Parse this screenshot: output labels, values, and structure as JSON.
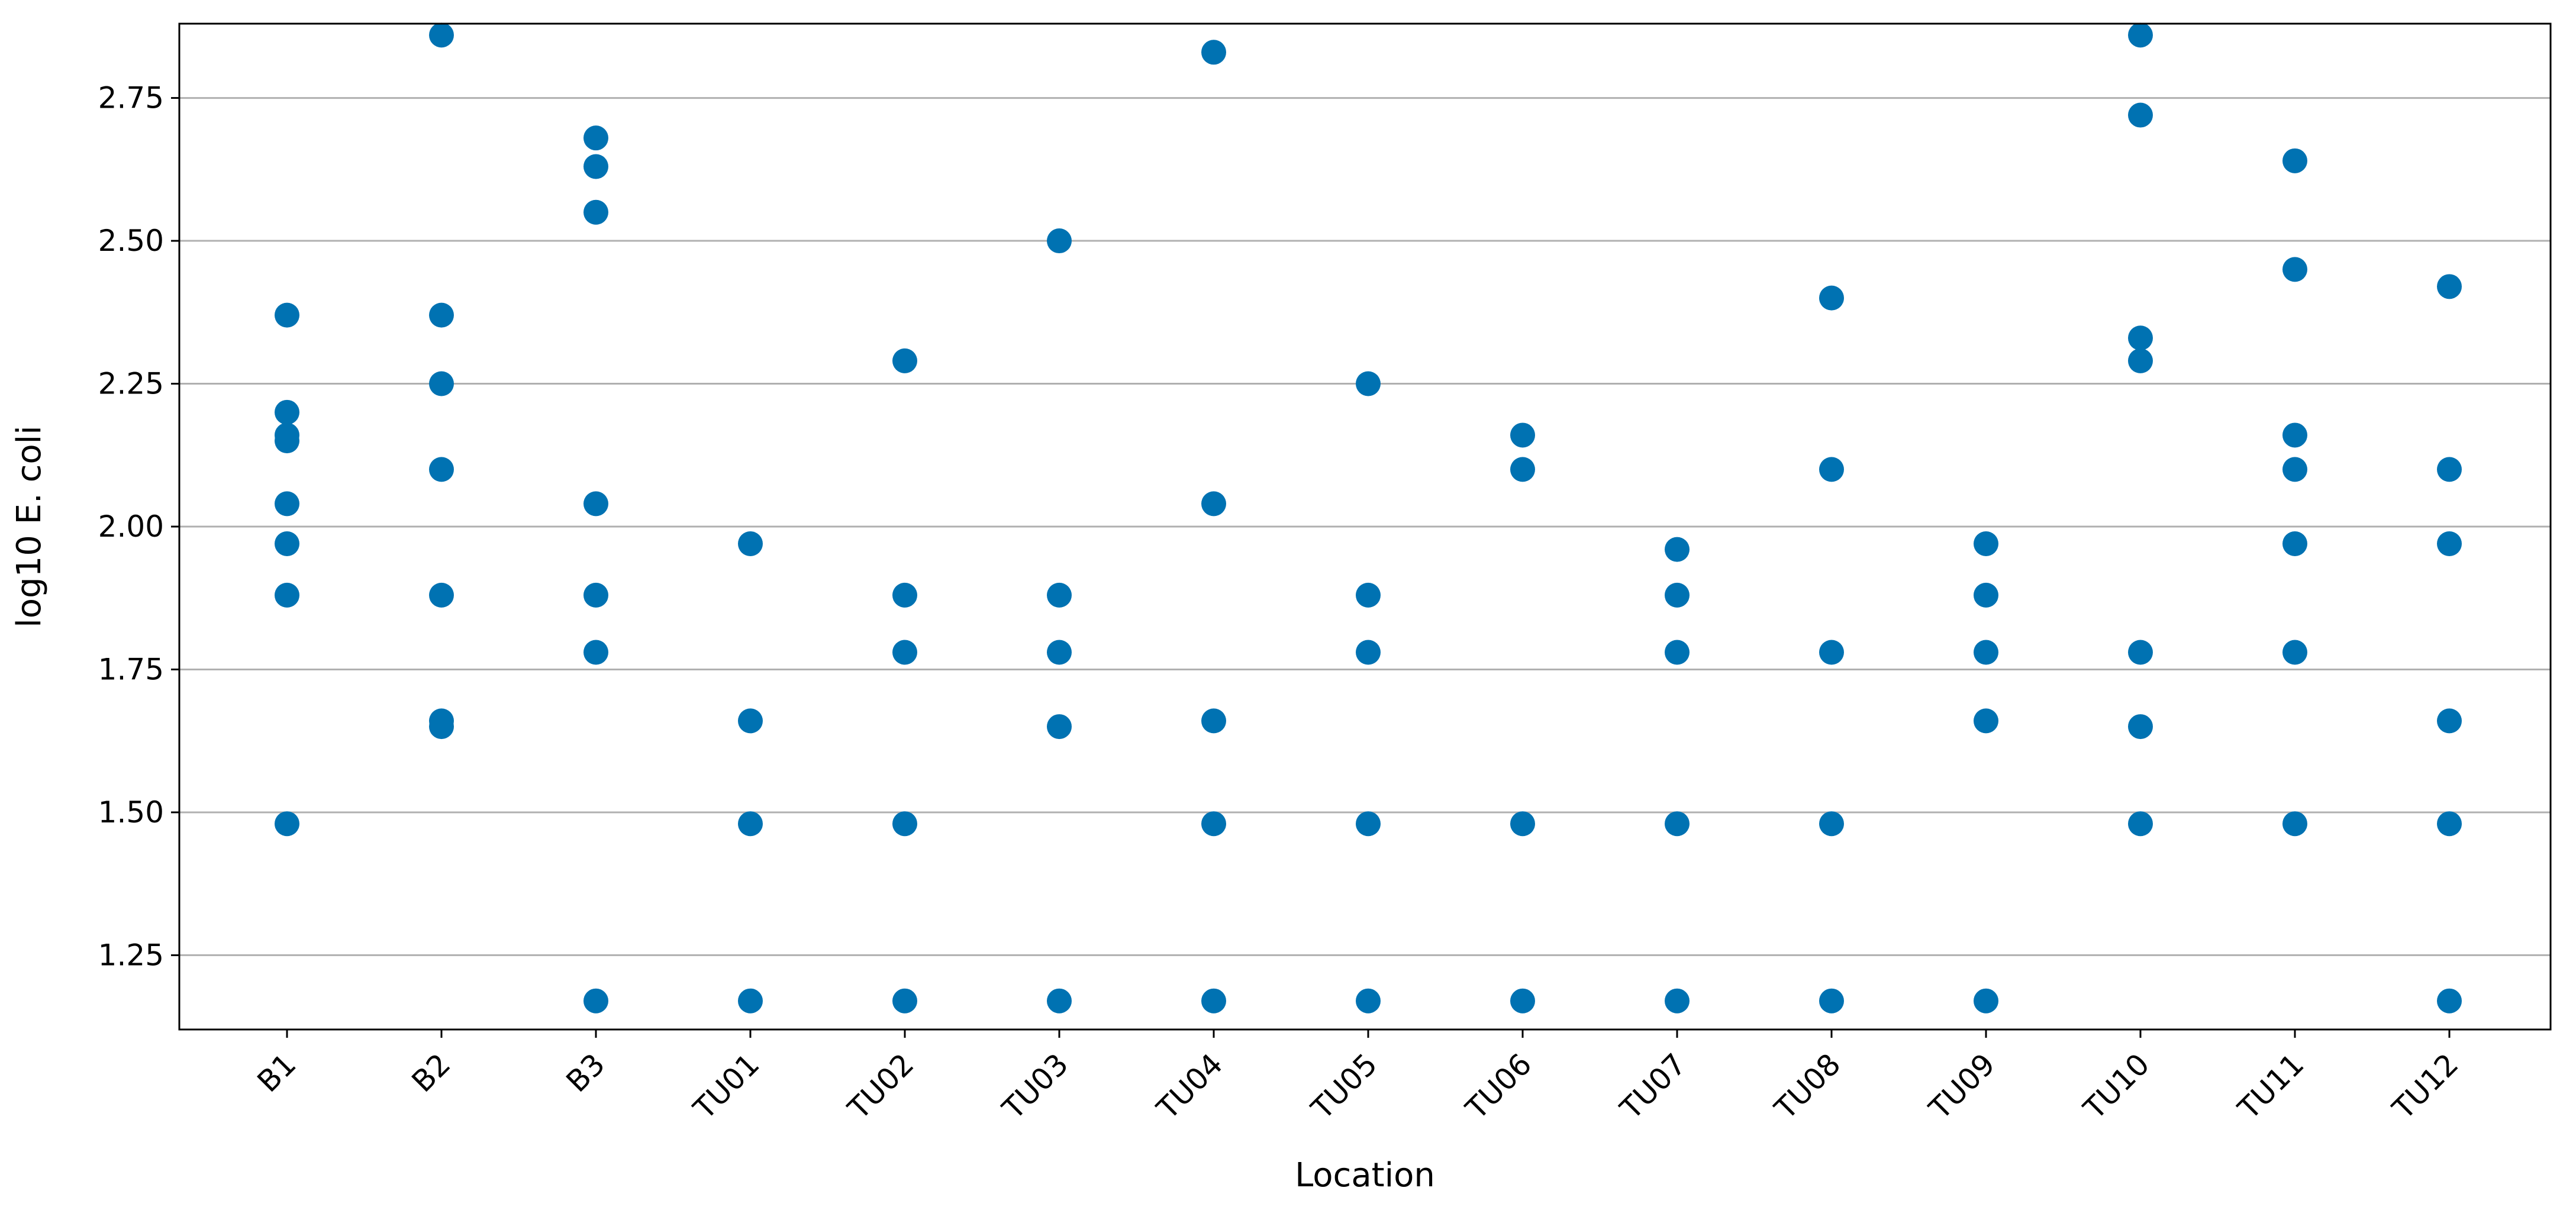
{
  "chart_data": {
    "type": "scatter",
    "title": "",
    "xlabel": "Location",
    "ylabel": "log10 E. coli",
    "categories": [
      "B1",
      "B2",
      "B3",
      "TU01",
      "TU02",
      "TU03",
      "TU04",
      "TU05",
      "TU06",
      "TU07",
      "TU08",
      "TU09",
      "TU10",
      "TU11",
      "TU12"
    ],
    "ylim": [
      1.12,
      2.88
    ],
    "yticks": [
      1.25,
      1.5,
      1.75,
      2.0,
      2.25,
      2.5,
      2.75
    ],
    "ytick_labels": [
      "1.25",
      "1.50",
      "1.75",
      "2.00",
      "2.25",
      "2.50",
      "2.75"
    ],
    "grid": "horizontal",
    "marker_color": "#0072B2",
    "points": {
      "B1": [
        2.37,
        2.2,
        2.16,
        2.15,
        2.04,
        1.97,
        1.88,
        1.48
      ],
      "B2": [
        2.86,
        2.37,
        2.25,
        2.1,
        1.88,
        1.66,
        1.65
      ],
      "B3": [
        2.68,
        2.63,
        2.55,
        2.04,
        1.88,
        1.78,
        1.17
      ],
      "TU01": [
        1.97,
        1.66,
        1.48,
        1.17
      ],
      "TU02": [
        2.29,
        1.88,
        1.78,
        1.48,
        1.17
      ],
      "TU03": [
        2.5,
        1.88,
        1.78,
        1.65,
        1.17
      ],
      "TU04": [
        2.83,
        2.04,
        1.66,
        1.48,
        1.17
      ],
      "TU05": [
        2.25,
        1.88,
        1.78,
        1.48,
        1.17
      ],
      "TU06": [
        2.16,
        2.1,
        1.48,
        1.17
      ],
      "TU07": [
        1.96,
        1.88,
        1.78,
        1.48,
        1.17
      ],
      "TU08": [
        2.4,
        2.1,
        1.78,
        1.48,
        1.17
      ],
      "TU09": [
        1.97,
        1.88,
        1.78,
        1.66,
        1.17
      ],
      "TU10": [
        2.86,
        2.72,
        2.33,
        2.29,
        1.78,
        1.65,
        1.48
      ],
      "TU11": [
        2.64,
        2.45,
        2.16,
        2.1,
        1.97,
        1.78,
        1.48
      ],
      "TU12": [
        2.42,
        2.1,
        1.97,
        1.66,
        1.48,
        1.17
      ]
    }
  }
}
